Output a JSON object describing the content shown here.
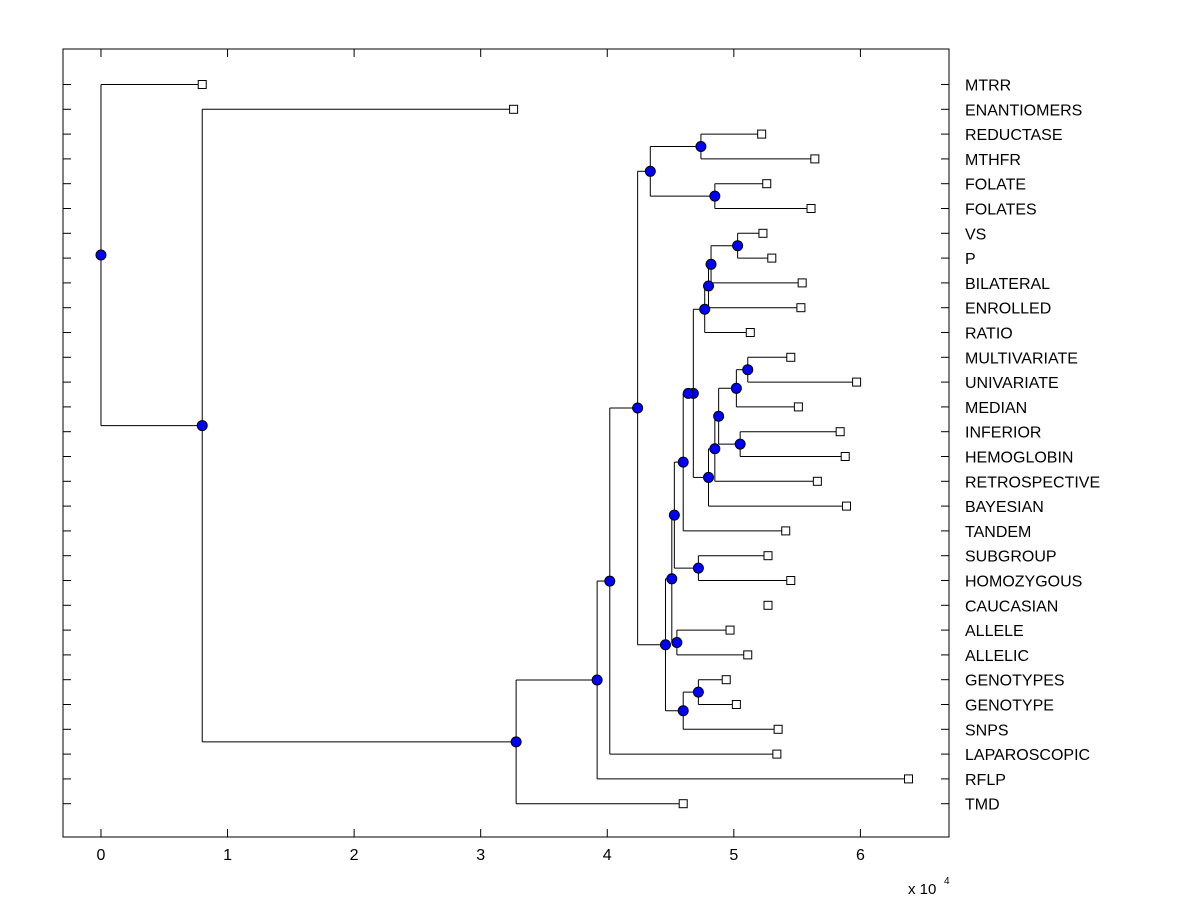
{
  "chart_data": {
    "type": "dendrogram",
    "orientation": "horizontal",
    "xlim": [
      -0.3,
      6.7
    ],
    "x_scale_exponent_label": "x 10",
    "x_scale_exponent": "4",
    "x_ticks": [
      0,
      1,
      2,
      3,
      4,
      5,
      6
    ],
    "leaves": [
      {
        "label": "MTRR",
        "x": 0.8
      },
      {
        "label": "ENANTIOMERS",
        "x": 3.26
      },
      {
        "label": "REDUCTASE",
        "x": 5.22
      },
      {
        "label": "MTHFR",
        "x": 5.64
      },
      {
        "label": "FOLATE",
        "x": 5.26
      },
      {
        "label": "FOLATES",
        "x": 5.61
      },
      {
        "label": "VS",
        "x": 5.23
      },
      {
        "label": "P",
        "x": 5.3
      },
      {
        "label": "BILATERAL",
        "x": 5.54
      },
      {
        "label": "ENROLLED",
        "x": 5.53
      },
      {
        "label": "RATIO",
        "x": 5.13
      },
      {
        "label": "MULTIVARIATE",
        "x": 5.45
      },
      {
        "label": "UNIVARIATE",
        "x": 5.97
      },
      {
        "label": "MEDIAN",
        "x": 5.51
      },
      {
        "label": "INFERIOR",
        "x": 5.84
      },
      {
        "label": "HEMOGLOBIN",
        "x": 5.88
      },
      {
        "label": "RETROSPECTIVE",
        "x": 5.66
      },
      {
        "label": "BAYESIAN",
        "x": 5.89
      },
      {
        "label": "TANDEM",
        "x": 5.41
      },
      {
        "label": "SUBGROUP",
        "x": 5.27
      },
      {
        "label": "HOMOZYGOUS",
        "x": 5.45
      },
      {
        "label": "CAUCASIAN",
        "x": 5.27
      },
      {
        "label": "ALLELE",
        "x": 4.97
      },
      {
        "label": "ALLELIC",
        "x": 5.11
      },
      {
        "label": "GENOTYPES",
        "x": 4.94
      },
      {
        "label": "GENOTYPE",
        "x": 5.02
      },
      {
        "label": "SNPS",
        "x": 5.35
      },
      {
        "label": "LAPAROSCOPIC",
        "x": 5.34
      },
      {
        "label": "RFLP",
        "x": 6.38
      },
      {
        "label": "TMD",
        "x": 4.6
      }
    ],
    "merges": [
      {
        "x": 0.0,
        "children": [
          "i0",
          "n26"
        ]
      },
      {
        "x": 0.8,
        "children": [
          "i1",
          "n25"
        ]
      },
      {
        "x": 3.28,
        "children": [
          "n24",
          "i29"
        ]
      },
      {
        "x": 3.92,
        "children": [
          "n23",
          "i28"
        ]
      },
      {
        "x": 4.02,
        "children": [
          "n22",
          "i27"
        ]
      },
      {
        "x": 4.24,
        "children": [
          "n2",
          "n21"
        ]
      },
      {
        "x": 4.34,
        "children": [
          "n0",
          "n1"
        ]
      },
      {
        "x": 4.74,
        "children": [
          "i2",
          "i3"
        ]
      },
      {
        "x": 4.85,
        "children": [
          "i4",
          "i5"
        ]
      },
      {
        "x": 4.46,
        "children": [
          "n20",
          "n19"
        ]
      },
      {
        "x": 4.51,
        "children": [
          "n18",
          "n17"
        ]
      },
      {
        "x": 4.6,
        "children": [
          "n3",
          "i26"
        ]
      },
      {
        "x": 4.72,
        "children": [
          "i24",
          "i25"
        ]
      },
      {
        "x": 4.55,
        "children": [
          "i22",
          "i23"
        ]
      },
      {
        "x": 4.53,
        "children": [
          "n16",
          "n14"
        ]
      },
      {
        "x": 4.72,
        "children": [
          "i19",
          "i20"
        ]
      },
      {
        "x": 4.6,
        "children": [
          "n15",
          "i18"
        ]
      },
      {
        "x": 4.64,
        "children": [
          "n13",
          "n12"
        ]
      },
      {
        "x": 4.68,
        "children": [
          "n7",
          "n11"
        ]
      },
      {
        "x": 4.77,
        "children": [
          "n6",
          "i10"
        ]
      },
      {
        "x": 4.8,
        "children": [
          "n5",
          "i9"
        ]
      },
      {
        "x": 4.82,
        "children": [
          "n4",
          "i8"
        ]
      },
      {
        "x": 5.03,
        "children": [
          "i6",
          "i7"
        ]
      },
      {
        "x": 4.8,
        "children": [
          "n10",
          "i17"
        ]
      },
      {
        "x": 4.85,
        "children": [
          "n9",
          "i16"
        ]
      },
      {
        "x": 4.88,
        "children": [
          "n8",
          "i15"
        ]
      },
      {
        "x": 5.02,
        "children": [
          "n24b",
          "i13"
        ]
      },
      {
        "x": 5.11,
        "children": [
          "i11",
          "i12"
        ]
      },
      {
        "x": 5.05,
        "children": [
          "i14",
          "i15b"
        ]
      }
    ]
  }
}
